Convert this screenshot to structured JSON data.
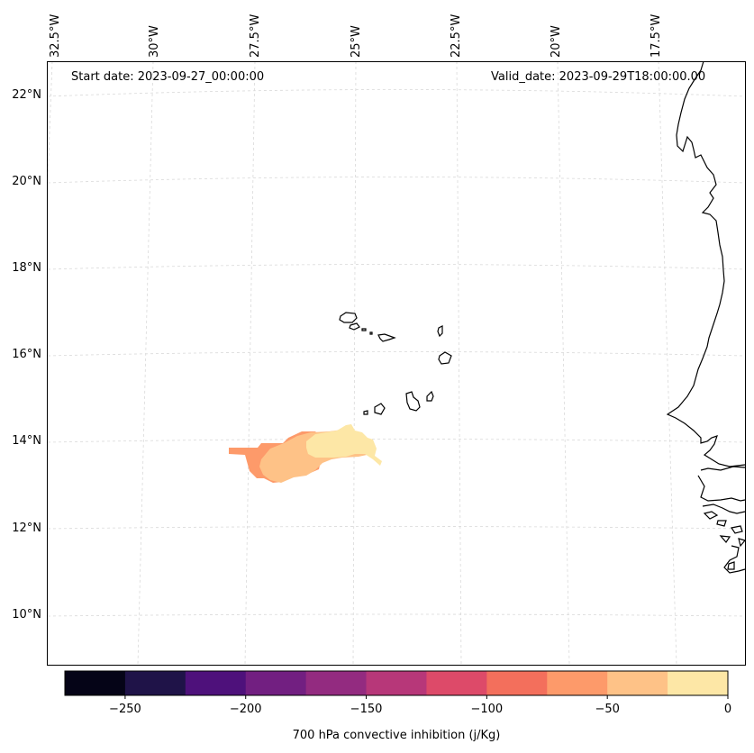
{
  "map": {
    "start_date": "Start date: 2023-09-27_00:00:00",
    "valid_date": "Valid_date: 2023-09-29T18:00:00.00",
    "lon_labels": [
      "32.5°W",
      "30°W",
      "27.5°W",
      "25°W",
      "22.5°W",
      "20°W",
      "17.5°W"
    ],
    "lat_labels": [
      "22°N",
      "20°N",
      "18°N",
      "16°N",
      "14°N",
      "12°N",
      "10°N"
    ],
    "features": [
      "Cape Verde islands",
      "West African coastline"
    ]
  },
  "colorbar": {
    "label": "700 hPa convective inhibition (j/Kg)",
    "range": [
      -275,
      0
    ],
    "ticks": [
      "−250",
      "−200",
      "−150",
      "−100",
      "−50",
      "0"
    ],
    "tick_values": [
      -250,
      -200,
      -150,
      -100,
      -50,
      0
    ],
    "colors": [
      "#050417",
      "#1f1348",
      "#4e117b",
      "#721f81",
      "#932b80",
      "#b73779",
      "#dd4a69",
      "#f36f5c",
      "#fd9a6a",
      "#fec287",
      "#fde7a6"
    ]
  },
  "colors": {
    "cin_-75_-50": "#fd9a6a",
    "cin_-50_-25": "#fec287",
    "cin_-25_0": "#fde7a6",
    "coast": "#000000",
    "grid": "#d9d9d9"
  }
}
